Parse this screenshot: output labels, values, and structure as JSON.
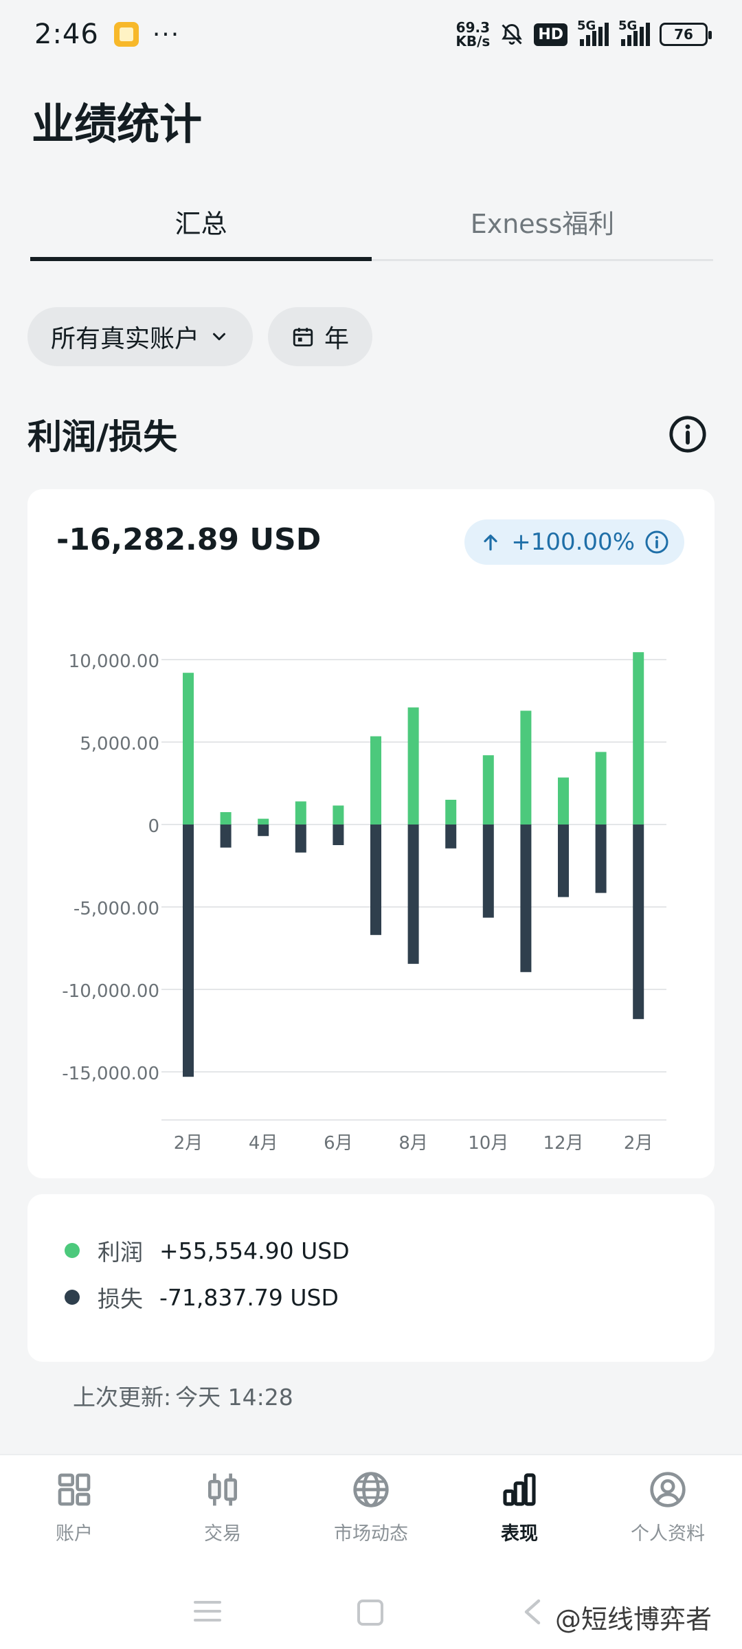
{
  "status": {
    "time": "2:46",
    "dots": "···",
    "speed_value": "69.3",
    "speed_unit": "KB/s",
    "hd": "HD",
    "net1": "5G",
    "net2": "5G",
    "battery": "76",
    "icons": [
      "app-icon",
      "mute-bell-icon",
      "signal-icon",
      "battery-icon"
    ]
  },
  "page": {
    "title": "业绩统计"
  },
  "tabs": [
    {
      "label": "汇总",
      "active": true
    },
    {
      "label": "Exness福利",
      "active": false
    }
  ],
  "filters": {
    "account": "所有真实账户",
    "period": "年"
  },
  "section": {
    "title": "利润/损失"
  },
  "summary": {
    "total": "-16,282.89 USD",
    "change": "+100.00%"
  },
  "chart_data": {
    "type": "bar",
    "stacked": true,
    "x": [
      "2月",
      "3月",
      "4月",
      "5月",
      "6月",
      "7月",
      "8月",
      "9月",
      "10月",
      "11月",
      "12月",
      "1月",
      "2月"
    ],
    "tick_labels": [
      "2月",
      "4月",
      "6月",
      "8月",
      "10月",
      "12月",
      "2月"
    ],
    "y_ticks": [
      "10,000.00",
      "5,000.00",
      "0",
      "-5,000.00",
      "-10,000.00",
      "-15,000.00"
    ],
    "ylim": [
      -17500,
      10000
    ],
    "grid": true,
    "series": [
      {
        "name": "利润",
        "color": "#4cc97c",
        "values": [
          9200,
          750,
          350,
          1400,
          1150,
          5350,
          7100,
          1500,
          4200,
          6900,
          2850,
          4400,
          10450
        ]
      },
      {
        "name": "损失",
        "color": "#2f3f4d",
        "values": [
          -15300,
          -1400,
          -700,
          -1700,
          -1250,
          -6700,
          -8450,
          -1450,
          -5650,
          -8950,
          -4400,
          -4150,
          -11800
        ]
      }
    ]
  },
  "legend": [
    {
      "name": "利润",
      "value": "+55,554.90 USD",
      "color": "#4cc97c"
    },
    {
      "name": "损失",
      "value": "-71,837.79 USD",
      "color": "#2f3f4d"
    }
  ],
  "updated": {
    "label": "上次更新:",
    "value": "今天 14:28"
  },
  "nav": [
    {
      "label": "账户",
      "icon": "dashboard-icon",
      "active": false
    },
    {
      "label": "交易",
      "icon": "candlestick-icon",
      "active": false
    },
    {
      "label": "市场动态",
      "icon": "globe-icon",
      "active": false
    },
    {
      "label": "表现",
      "icon": "bar-chart-icon",
      "active": true
    },
    {
      "label": "个人资料",
      "icon": "profile-icon",
      "active": false
    }
  ],
  "watermark": "@短线博弈者"
}
